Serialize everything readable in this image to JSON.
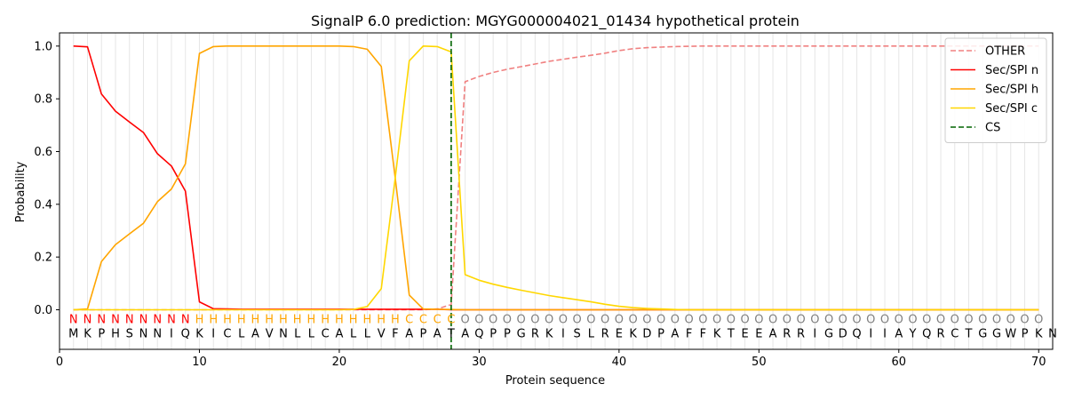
{
  "chart_data": {
    "type": "line",
    "title": "SignalP 6.0 prediction: MGYG000004021_01434 hypothetical protein",
    "xlabel": "Protein sequence",
    "ylabel": "Probability",
    "xlim": [
      0,
      71
    ],
    "ylim": [
      -0.15,
      1.05
    ],
    "x_ticks": [
      0,
      10,
      20,
      30,
      40,
      50,
      60,
      70
    ],
    "y_ticks": [
      0.0,
      0.2,
      0.4,
      0.6,
      0.8,
      1.0
    ],
    "x_tick_labels": [
      "0",
      "10",
      "20",
      "30",
      "40",
      "50",
      "60",
      "70"
    ],
    "y_tick_labels": [
      "0.0",
      "0.2",
      "0.4",
      "0.6",
      "0.8",
      "1.0"
    ],
    "grid": "vertical lines at each residue",
    "legend_position": "top-right",
    "sequence": "MKPHSNNIQKICLAVNLLCALLVFAPATAQPPGRKISLREKDPAFFKTEEARRIGDQIIAYQRCTGGWPKN",
    "labels": "NNNNNNNNNHHHHHHHHHHHHHHHCCCCOOOOOOOOOOOOOOOOOOOOOOOOOOOOOOOOOOOOOOOOOO",
    "label_colors": {
      "N": "#ff0000",
      "H": "#ffa500",
      "C": "#ffa500",
      "O": "#808080"
    },
    "cleavage_site": 28,
    "series": [
      {
        "name": "OTHER",
        "color": "#f08080",
        "style": "dashed",
        "values": [
          0,
          0,
          0,
          0,
          0,
          0,
          0,
          0,
          0,
          0,
          0,
          0,
          0,
          0,
          0,
          0,
          0,
          0,
          0,
          0,
          0,
          0,
          0,
          0,
          0,
          0,
          0.003,
          0.02,
          0.865,
          0.885,
          0.9,
          0.912,
          0.922,
          0.932,
          0.942,
          0.95,
          0.958,
          0.965,
          0.973,
          0.983,
          0.99,
          0.994,
          0.996,
          0.998,
          0.999,
          1,
          1,
          1,
          1,
          1,
          1,
          1,
          1,
          1,
          1,
          1,
          1,
          1,
          1,
          1,
          1,
          1,
          1,
          1,
          1,
          1,
          1,
          1,
          1,
          1
        ]
      },
      {
        "name": "Sec/SPI n",
        "color": "#ff0000",
        "style": "solid",
        "values": [
          1.0,
          0.997,
          0.818,
          0.753,
          0.712,
          0.672,
          0.592,
          0.545,
          0.45,
          0.03,
          0.004,
          0.003,
          0.002,
          0.002,
          0.002,
          0.002,
          0.002,
          0.002,
          0.002,
          0.002,
          0.002,
          0.002,
          0.002,
          0.002,
          0.002,
          0.002,
          0.002,
          0,
          0,
          0,
          0,
          0,
          0,
          0,
          0,
          0,
          0,
          0,
          0,
          0,
          0,
          0,
          0,
          0,
          0,
          0,
          0,
          0,
          0,
          0,
          0,
          0,
          0,
          0,
          0,
          0,
          0,
          0,
          0,
          0,
          0,
          0,
          0,
          0,
          0,
          0,
          0,
          0,
          0,
          0
        ]
      },
      {
        "name": "Sec/SPI h",
        "color": "#ffa500",
        "style": "solid",
        "values": [
          0,
          0.003,
          0.183,
          0.247,
          0.288,
          0.328,
          0.41,
          0.458,
          0.553,
          0.972,
          0.998,
          1.0,
          1.0,
          1.0,
          1.0,
          1.0,
          1.0,
          1.0,
          1.0,
          1.0,
          0.998,
          0.988,
          0.923,
          0.5,
          0.056,
          0.003,
          0.002,
          0.001,
          0,
          0,
          0,
          0,
          0,
          0,
          0,
          0,
          0,
          0,
          0,
          0,
          0,
          0,
          0,
          0,
          0,
          0,
          0,
          0,
          0,
          0,
          0,
          0,
          0,
          0,
          0,
          0,
          0,
          0,
          0,
          0,
          0,
          0,
          0,
          0,
          0,
          0,
          0,
          0,
          0,
          0
        ]
      },
      {
        "name": "Sec/SPI c",
        "color": "#ffd700",
        "style": "solid",
        "values": [
          0,
          0,
          0,
          0,
          0,
          0,
          0,
          0,
          0,
          0,
          0,
          0,
          0,
          0,
          0,
          0,
          0,
          0,
          0,
          0,
          0.001,
          0.012,
          0.08,
          0.5,
          0.944,
          1.0,
          0.998,
          0.978,
          0.133,
          0.112,
          0.097,
          0.085,
          0.074,
          0.064,
          0.054,
          0.046,
          0.038,
          0.03,
          0.021,
          0.013,
          0.008,
          0.005,
          0.003,
          0.001,
          0,
          0,
          0,
          0,
          0,
          0,
          0,
          0,
          0,
          0,
          0,
          0,
          0,
          0,
          0,
          0,
          0,
          0,
          0,
          0,
          0,
          0,
          0,
          0,
          0,
          0
        ]
      }
    ],
    "legend": [
      {
        "name": "OTHER",
        "color": "#f08080",
        "style": "dashed"
      },
      {
        "name": "Sec/SPI n",
        "color": "#ff0000",
        "style": "solid"
      },
      {
        "name": "Sec/SPI h",
        "color": "#ffa500",
        "style": "solid"
      },
      {
        "name": "Sec/SPI c",
        "color": "#ffd700",
        "style": "solid"
      },
      {
        "name": "CS",
        "color": "#006400",
        "style": "dashed"
      }
    ]
  }
}
